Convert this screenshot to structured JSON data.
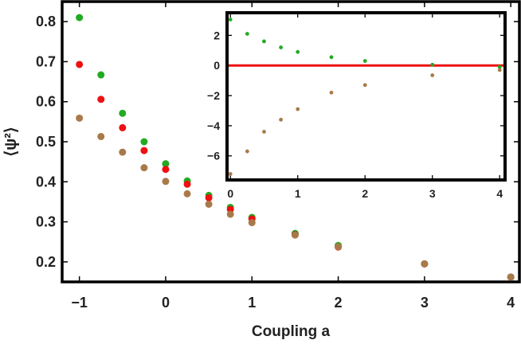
{
  "chart_data": [
    {
      "type": "scatter",
      "xlabel": "Coupling a",
      "ylabel": "⟨ψ²⟩",
      "xlim": [
        -1.2,
        4.1
      ],
      "ylim": [
        0.15,
        0.85
      ],
      "xticks": [
        -1,
        0,
        1,
        2,
        3,
        4
      ],
      "xtick_labels": [
        "−1",
        "0",
        "1",
        "2",
        "3",
        "4"
      ],
      "yticks": [
        0.2,
        0.3,
        0.4,
        0.5,
        0.6,
        0.7,
        0.8
      ],
      "ytick_labels": [
        "0.2",
        "0.3",
        "0.4",
        "0.5",
        "0.6",
        "0.7",
        "0.8"
      ],
      "grid": false,
      "legend": "none",
      "series": [
        {
          "color": "#22aa22",
          "x": [
            -1,
            -0.75,
            -0.5,
            -0.25,
            0,
            0.25,
            0.5,
            0.75,
            1,
            1.5,
            2,
            3,
            4
          ],
          "y": [
            0.81,
            0.667,
            0.571,
            0.5,
            0.445,
            0.402,
            0.366,
            0.336,
            0.311,
            0.271,
            0.241,
            0.195,
            0.162
          ]
        },
        {
          "color": "#ee1111",
          "x": [
            -1,
            -0.75,
            -0.5,
            -0.25,
            0,
            0.25,
            0.5,
            0.75,
            1,
            1.5,
            2,
            3,
            4
          ],
          "y": [
            0.693,
            0.606,
            0.535,
            0.478,
            0.431,
            0.394,
            0.36,
            0.331,
            0.307,
            0.268,
            0.237,
            0.195,
            0.162
          ]
        },
        {
          "color": "#a87a4a",
          "x": [
            -1,
            -0.75,
            -0.5,
            -0.25,
            0,
            0.25,
            0.5,
            0.75,
            1,
            1.5,
            2,
            3,
            4
          ],
          "y": [
            0.559,
            0.513,
            0.474,
            0.435,
            0.401,
            0.37,
            0.344,
            0.319,
            0.298,
            0.267,
            0.238,
            0.195,
            0.162
          ]
        }
      ]
    },
    {
      "type": "scatter",
      "xlabel": "",
      "ylabel": "",
      "xlim": [
        -0.05,
        4.08
      ],
      "ylim": [
        -7.6,
        3.5
      ],
      "xticks": [
        0,
        1,
        2,
        3,
        4
      ],
      "xtick_labels": [
        "0",
        "1",
        "2",
        "3",
        "4"
      ],
      "yticks": [
        2,
        0,
        -2,
        -4,
        -6
      ],
      "ytick_labels": [
        "2",
        "0",
        "−2",
        "−4",
        "−6"
      ],
      "grid": false,
      "legend": "none",
      "reference_line": {
        "y": 0,
        "color": "#ee1111"
      },
      "series": [
        {
          "color": "#22aa22",
          "x": [
            0,
            0.25,
            0.5,
            0.75,
            1,
            1.5,
            2,
            3,
            4
          ],
          "y": [
            3.05,
            2.1,
            1.6,
            1.2,
            0.9,
            0.55,
            0.3,
            0.05,
            -0.1
          ]
        },
        {
          "color": "#a87a4a",
          "x": [
            0,
            0.25,
            0.5,
            0.75,
            1,
            1.5,
            2,
            3,
            4
          ],
          "y": [
            -7.2,
            -5.7,
            -4.4,
            -3.6,
            -2.9,
            -1.8,
            -1.3,
            -0.65,
            -0.3
          ]
        }
      ]
    }
  ]
}
